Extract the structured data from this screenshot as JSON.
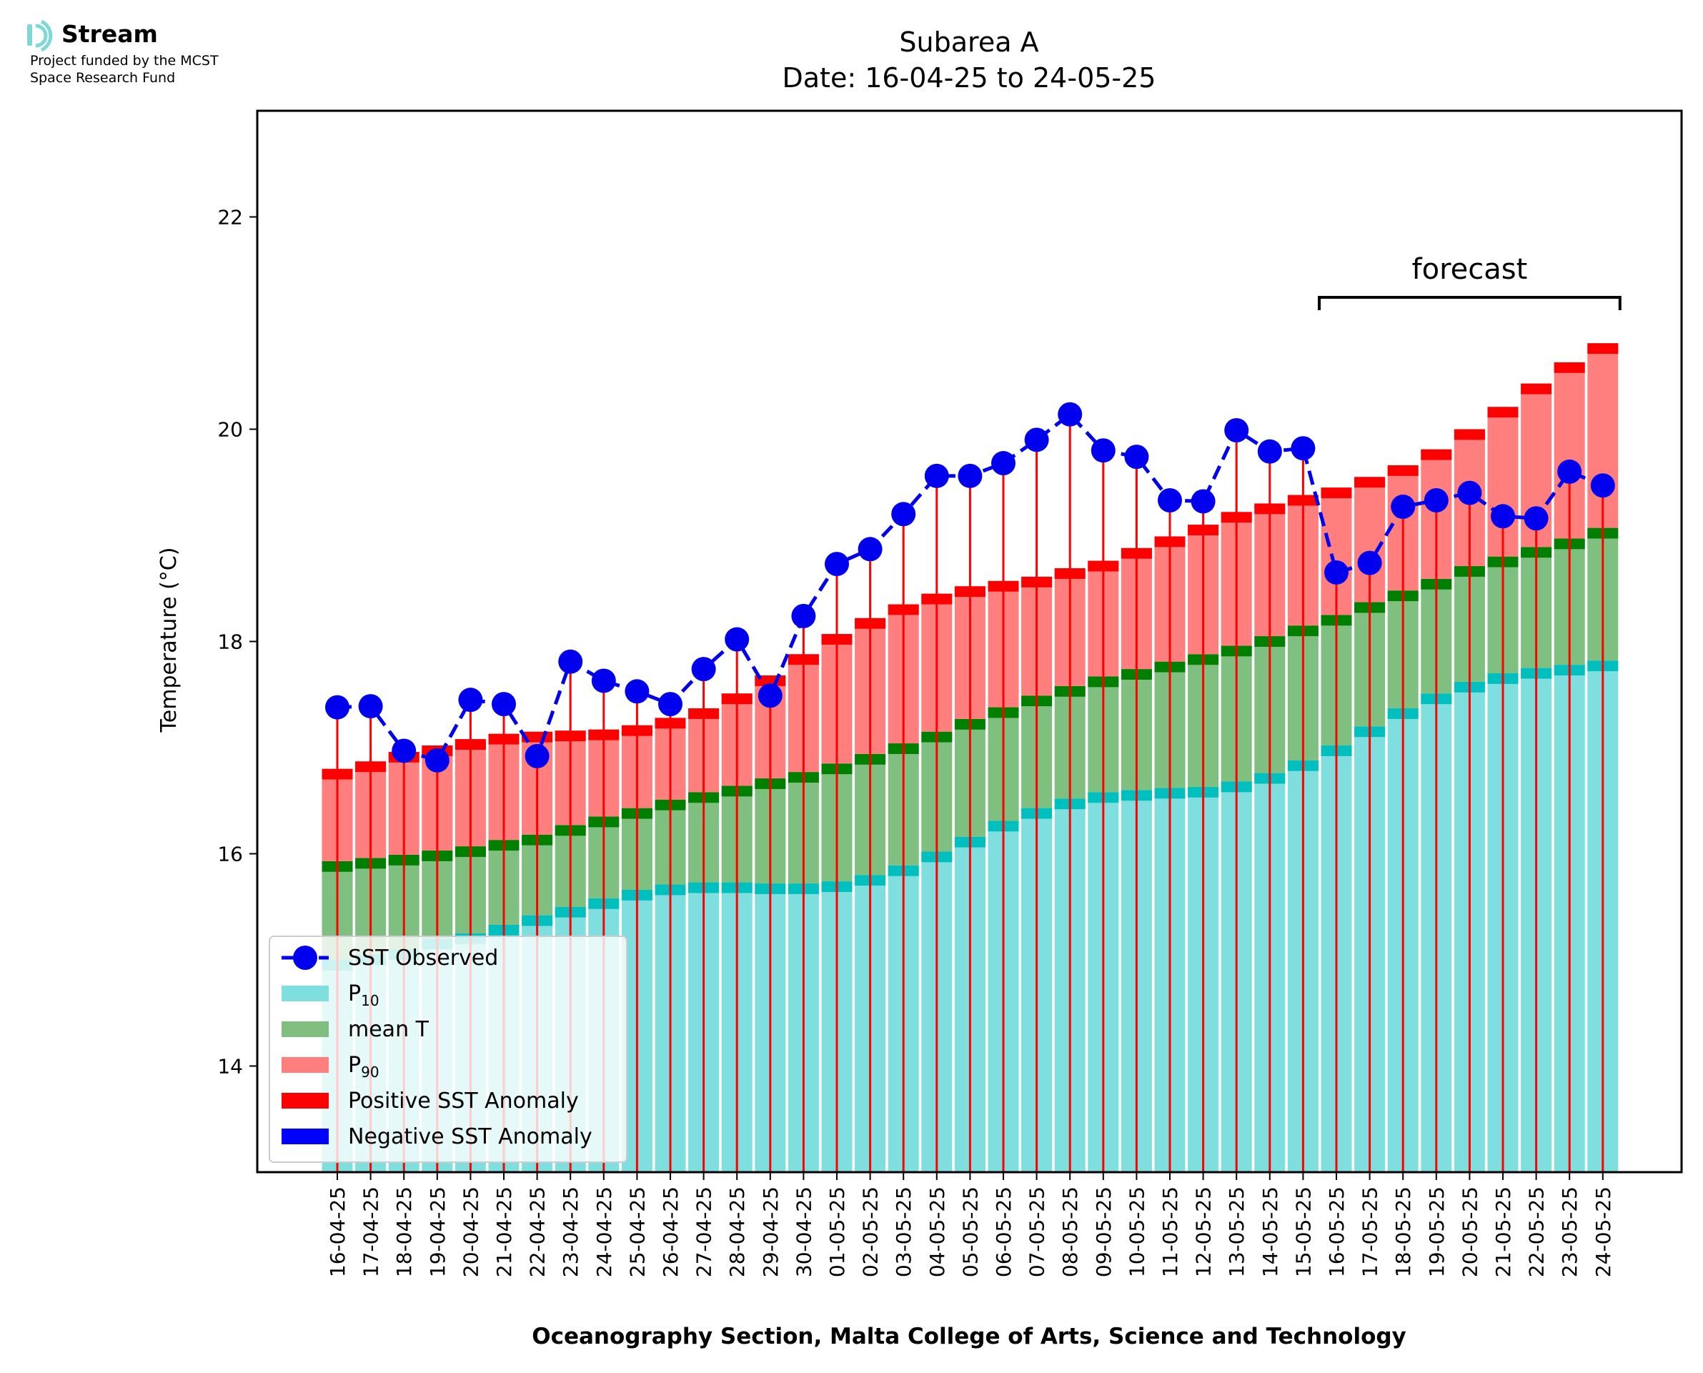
{
  "logo": {
    "name": "Stream",
    "line1": "Project funded by the MCST",
    "line2": "Space Research Fund",
    "accent_color": "#7fd8d8"
  },
  "chart_data": {
    "type": "bar",
    "title_line1": "Subarea A",
    "title_line2": "Date: 16-04-25 to 24-05-25",
    "xlabel": "Oceanography Section, Malta College of Arts, Science and Technology",
    "ylabel": "Temperature (°C)",
    "ylim": [
      13.0,
      23.0
    ],
    "yticks": [
      14,
      16,
      18,
      20,
      22
    ],
    "grid": false,
    "legend_position": "bottom-left",
    "forecast_label": "forecast",
    "forecast_range": [
      "16-05-25",
      "24-05-25"
    ],
    "categories": [
      "16-04-25",
      "17-04-25",
      "18-04-25",
      "19-04-25",
      "20-04-25",
      "21-04-25",
      "22-04-25",
      "23-04-25",
      "24-04-25",
      "25-04-25",
      "26-04-25",
      "27-04-25",
      "28-04-25",
      "29-04-25",
      "30-04-25",
      "01-05-25",
      "02-05-25",
      "03-05-25",
      "04-05-25",
      "05-05-25",
      "06-05-25",
      "07-05-25",
      "08-05-25",
      "09-05-25",
      "10-05-25",
      "11-05-25",
      "12-05-25",
      "13-05-25",
      "14-05-25",
      "15-05-25",
      "16-05-25",
      "17-05-25",
      "18-05-25",
      "19-05-25",
      "20-05-25",
      "21-05-25",
      "22-05-25",
      "23-05-25",
      "24-05-25"
    ],
    "p10": [
      15.0,
      15.05,
      15.1,
      15.2,
      15.25,
      15.33,
      15.42,
      15.5,
      15.58,
      15.66,
      15.71,
      15.73,
      15.73,
      15.72,
      15.72,
      15.74,
      15.8,
      15.89,
      16.02,
      16.16,
      16.31,
      16.43,
      16.52,
      16.58,
      16.6,
      16.62,
      16.63,
      16.68,
      16.76,
      16.88,
      17.02,
      17.2,
      17.37,
      17.51,
      17.62,
      17.7,
      17.75,
      17.78,
      17.82
    ],
    "mean_t": [
      15.93,
      15.96,
      15.99,
      16.03,
      16.07,
      16.13,
      16.18,
      16.27,
      16.35,
      16.43,
      16.51,
      16.58,
      16.64,
      16.71,
      16.77,
      16.85,
      16.94,
      17.04,
      17.15,
      17.27,
      17.38,
      17.49,
      17.58,
      17.67,
      17.74,
      17.81,
      17.88,
      17.96,
      18.05,
      18.15,
      18.25,
      18.37,
      18.48,
      18.59,
      18.71,
      18.8,
      18.89,
      18.97,
      19.07
    ],
    "p90": [
      16.8,
      16.87,
      16.96,
      17.02,
      17.08,
      17.13,
      17.15,
      17.16,
      17.17,
      17.21,
      17.28,
      17.37,
      17.51,
      17.68,
      17.88,
      18.07,
      18.22,
      18.35,
      18.45,
      18.52,
      18.57,
      18.61,
      18.69,
      18.76,
      18.88,
      18.99,
      19.1,
      19.22,
      19.3,
      19.38,
      19.45,
      19.55,
      19.66,
      19.81,
      20.0,
      20.21,
      20.43,
      20.63,
      20.81
    ],
    "sst_observed": [
      17.38,
      17.39,
      16.97,
      16.88,
      17.45,
      17.41,
      16.92,
      17.81,
      17.63,
      17.53,
      17.41,
      17.74,
      18.02,
      17.49,
      18.24,
      18.73,
      18.87,
      19.2,
      19.56,
      19.56,
      19.68,
      19.9,
      20.14,
      19.8,
      19.74,
      19.33,
      19.32,
      19.99,
      19.79,
      19.82,
      18.65,
      18.74,
      19.27,
      19.33,
      19.4,
      19.18,
      19.16,
      19.6,
      19.47
    ],
    "series": [
      {
        "name": "SST Observed",
        "color": "#0000ee"
      },
      {
        "name": "P",
        "sub": "10",
        "color": "#7fdfdf"
      },
      {
        "name": "mean T",
        "color": "#7fbf7f"
      },
      {
        "name": "P",
        "sub": "90",
        "color": "#ff7f7f"
      },
      {
        "name": "Positive SST Anomaly",
        "color": "#ff0000"
      },
      {
        "name": "Negative SST Anomaly",
        "color": "#0000ff"
      }
    ],
    "colors": {
      "p10_fill": "#7fdfdf",
      "p10_cap": "#00bfbf",
      "mean_fill": "#7fbf7f",
      "mean_cap": "#007f00",
      "p90_fill": "#ff7f7f",
      "p90_cap": "#ff0000",
      "positive_anomaly": "#ff0000",
      "negative_anomaly": "#0000ff",
      "observed": "#0000ee"
    }
  }
}
